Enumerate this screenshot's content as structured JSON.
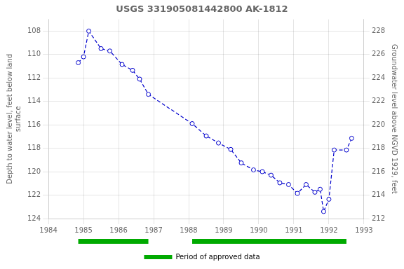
{
  "chart_data": {
    "type": "line",
    "title": "USGS 331905081442800 AK-1812",
    "y_label": "Depth to water level, feet below land\nsurface",
    "y2_label": "Groundwater level above NGVD 1929, feet",
    "x": [
      1984.85,
      1985.0,
      1985.15,
      1985.5,
      1985.75,
      1986.1,
      1986.4,
      1986.6,
      1986.85,
      1988.1,
      1988.5,
      1988.85,
      1989.2,
      1989.5,
      1989.85,
      1990.1,
      1990.35,
      1990.6,
      1990.85,
      1991.1,
      1991.35,
      1991.6,
      1991.75,
      1991.85,
      1992.0,
      1992.15,
      1992.5,
      1992.65
    ],
    "series": [
      {
        "color": "#0000cc",
        "marker": "circle",
        "line_style": "dashed",
        "values": [
          110.7,
          110.2,
          108.0,
          109.5,
          109.7,
          110.85,
          111.35,
          112.1,
          113.4,
          115.9,
          116.95,
          117.55,
          118.1,
          119.25,
          119.85,
          120.0,
          120.3,
          120.95,
          121.1,
          121.85,
          121.1,
          121.75,
          121.5,
          123.4,
          122.35,
          118.15,
          118.15,
          117.15
        ]
      }
    ],
    "xlim": [
      1984,
      1993
    ],
    "xticks": [
      1984,
      1985,
      1986,
      1987,
      1988,
      1989,
      1990,
      1991,
      1992,
      1993
    ],
    "ylim": [
      124,
      107
    ],
    "yticks": [
      108,
      110,
      112,
      114,
      116,
      118,
      120,
      122,
      124
    ],
    "y2lim": [
      212,
      229
    ],
    "y2ticks": [
      212,
      214,
      216,
      218,
      220,
      222,
      224,
      226,
      228
    ],
    "grid": true,
    "legend": "bottom",
    "periods": {
      "name": "Period of approved data",
      "color": "#00aa00",
      "spans": [
        [
          1984.85,
          1986.85
        ],
        [
          1988.1,
          1992.5
        ]
      ]
    }
  }
}
